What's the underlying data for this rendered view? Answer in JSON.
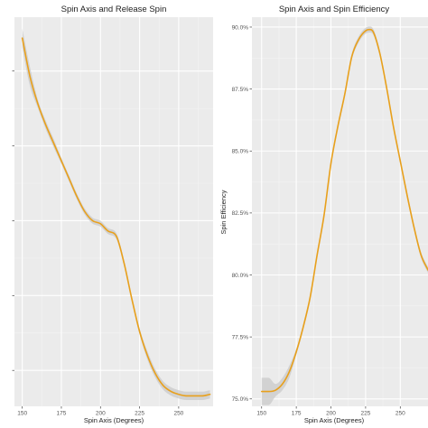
{
  "colors": {
    "panel_bg": "#ebebeb",
    "grid_major": "#ffffff",
    "line": "#e8a01c",
    "ribbon": "#c9c9c9"
  },
  "chart_data": [
    {
      "type": "line",
      "title": "Spin Axis and Release Spin",
      "xlabel": "Spin Axis (Degrees)",
      "ylabel": "",
      "xlim": [
        145,
        272
      ],
      "ylim": [
        2188,
        2318
      ],
      "x_ticks": [
        150,
        175,
        200,
        225,
        250,
        275
      ],
      "y_ticks": [
        2200,
        2225,
        2250,
        2275,
        2300
      ],
      "y_tick_labels": [
        "",
        "",
        "",
        "",
        ""
      ],
      "grid": true,
      "series": [
        {
          "x": [
            150,
            155,
            160,
            165,
            170,
            175,
            180,
            185,
            190,
            195,
            200,
            205,
            210,
            215,
            220,
            225,
            230,
            235,
            240,
            245,
            250,
            255,
            260,
            265,
            270
          ],
          "y": [
            2311,
            2298,
            2289,
            2282,
            2276,
            2270,
            2264,
            2258,
            2253,
            2250,
            2249,
            2246.5,
            2245,
            2236,
            2224,
            2213,
            2205,
            2199,
            2195,
            2193,
            2192,
            2191.5,
            2191.5,
            2191.5,
            2192
          ]
        }
      ]
    },
    {
      "type": "line",
      "title": "Spin Axis and Spin Efficiency",
      "xlabel": "Spin Axis (Degrees)",
      "ylabel": "Spin Efficiency",
      "xlim": [
        143,
        270
      ],
      "ylim": [
        74.7,
        90.4
      ],
      "x_ticks": [
        150,
        175,
        200,
        225,
        250
      ],
      "y_ticks": [
        75.0,
        77.5,
        80.0,
        82.5,
        85.0,
        87.5,
        90.0
      ],
      "y_tick_labels": [
        "75.0%",
        "77.5%",
        "80.0%",
        "82.5%",
        "85.0%",
        "87.5%",
        "90.0%"
      ],
      "grid": true,
      "series": [
        {
          "x": [
            150,
            155,
            160,
            165,
            170,
            175,
            180,
            185,
            190,
            195,
            200,
            205,
            210,
            215,
            220,
            225,
            228,
            230,
            235,
            240,
            245,
            250,
            255,
            260,
            265,
            270
          ],
          "y": [
            75.3,
            75.3,
            75.35,
            75.6,
            76.1,
            76.9,
            77.9,
            79.1,
            80.8,
            82.4,
            84.5,
            86.0,
            87.3,
            88.8,
            89.5,
            89.85,
            89.9,
            89.85,
            89.0,
            87.6,
            86.0,
            84.6,
            83.2,
            81.9,
            80.8,
            80.2
          ]
        }
      ]
    }
  ]
}
